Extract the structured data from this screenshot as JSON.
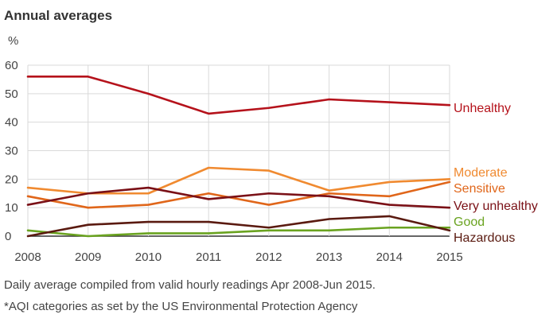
{
  "chart_data": {
    "type": "line",
    "title": "Annual averages",
    "ylabel": "%",
    "ylim": [
      0,
      60
    ],
    "yticks": [
      0,
      10,
      20,
      30,
      40,
      50,
      60
    ],
    "categories": [
      "2008",
      "2009",
      "2010",
      "2011",
      "2012",
      "2013",
      "2014",
      "2015"
    ],
    "grid": true,
    "legend": "inline-right",
    "series": [
      {
        "name": "Unhealthy",
        "color": "#b5121b",
        "values": [
          56,
          56,
          50,
          43,
          45,
          48,
          47,
          46
        ]
      },
      {
        "name": "Moderate",
        "color": "#f08a30",
        "values": [
          17,
          15,
          15,
          24,
          23,
          16,
          19,
          20
        ]
      },
      {
        "name": "Sensitive",
        "color": "#e0661a",
        "values": [
          14,
          10,
          11,
          15,
          11,
          15,
          14,
          19
        ]
      },
      {
        "name": "Very unhealthy",
        "color": "#7a1016",
        "values": [
          11,
          15,
          17,
          13,
          15,
          14,
          11,
          10
        ]
      },
      {
        "name": "Good",
        "color": "#6aa320",
        "values": [
          2,
          0,
          1,
          1,
          2,
          2,
          3,
          3
        ]
      },
      {
        "name": "Hazardous",
        "color": "#5a1a10",
        "values": [
          0,
          4,
          5,
          5,
          3,
          6,
          7,
          2
        ]
      }
    ]
  },
  "notes": {
    "line1": "Daily average compiled from valid hourly readings Apr 2008-Jun 2015.",
    "line2": "*AQI categories as set by the US Environmental Protection Agency"
  }
}
